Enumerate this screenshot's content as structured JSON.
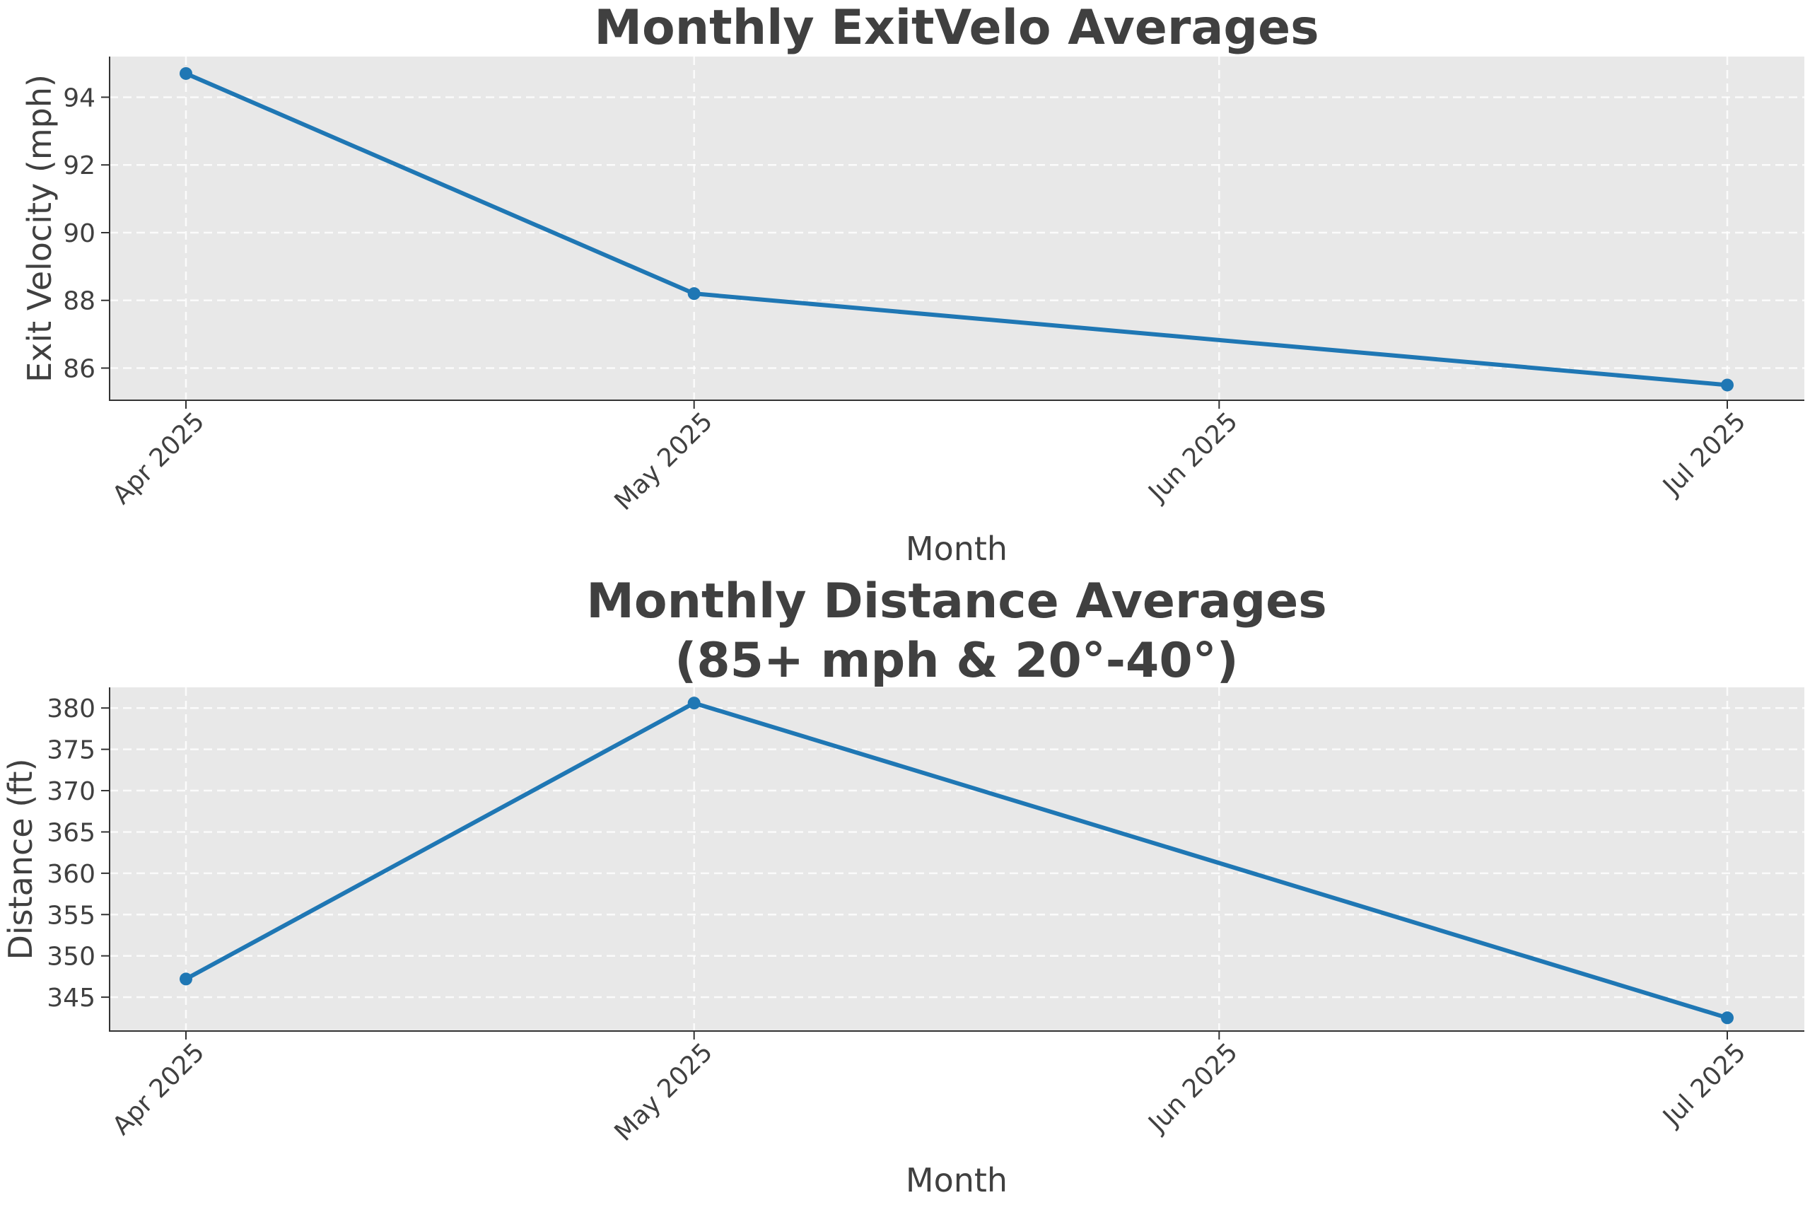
{
  "chart_data": [
    {
      "type": "line",
      "title": "Monthly ExitVelo Averages",
      "xlabel": "Month",
      "ylabel": "Exit Velocity (mph)",
      "x": [
        "2025-04-01",
        "2025-05-01",
        "2025-07-01"
      ],
      "x_ticks": [
        "Apr 2025",
        "May 2025",
        "Jun 2025",
        "Jul 2025"
      ],
      "series": [
        {
          "values": [
            94.7,
            88.2,
            85.5
          ],
          "color": "#1f77b4"
        }
      ],
      "ylim": [
        85.05,
        95.2
      ],
      "y_ticks": [
        86,
        88,
        90,
        92,
        94
      ],
      "grid": true,
      "background": "#e8e8e8"
    },
    {
      "type": "line",
      "title": "Monthly Distance Averages\n(85+ mph & 20°-40°)",
      "title_lines": [
        "Monthly Distance Averages",
        "(85+ mph & 20°-40°)"
      ],
      "xlabel": "Month",
      "ylabel": "Distance (ft)",
      "x": [
        "2025-04-01",
        "2025-05-01",
        "2025-07-01"
      ],
      "x_ticks": [
        "Apr 2025",
        "May 2025",
        "Jun 2025",
        "Jul 2025"
      ],
      "series": [
        {
          "values": [
            347.2,
            380.6,
            342.5
          ],
          "color": "#1f77b4"
        }
      ],
      "ylim": [
        340.9,
        382.5
      ],
      "y_ticks": [
        345,
        350,
        355,
        360,
        365,
        370,
        375,
        380
      ],
      "grid": true,
      "background": "#e8e8e8"
    }
  ]
}
